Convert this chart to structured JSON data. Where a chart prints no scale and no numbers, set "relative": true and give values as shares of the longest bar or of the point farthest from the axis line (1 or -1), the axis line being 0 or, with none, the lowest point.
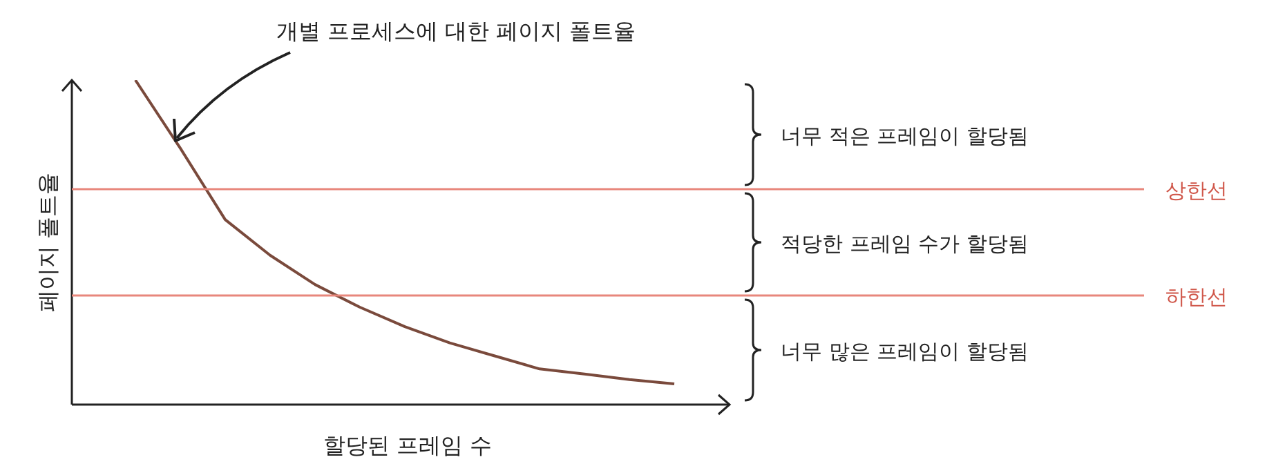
{
  "chart_data": {
    "type": "line",
    "relative": true,
    "xlabel": "할당된 프레임 수",
    "ylabel": "페이지 폴트율",
    "categories": [
      null,
      null,
      null,
      null,
      null,
      null,
      null,
      null,
      null,
      null,
      null,
      null,
      null
    ],
    "series": [
      {
        "color": "#7a4a3c",
        "values": [
          1,
          0.79,
          0.57,
          0.46,
          0.37,
          0.3,
          0.24,
          0.19,
          0.15,
          0.11,
          0.094,
          0.077,
          0.064
        ]
      }
    ],
    "ref_lines": [
      {
        "axis": "y",
        "value": 0.664,
        "label": "상한선",
        "color": "#e8877c"
      },
      {
        "axis": "y",
        "value": 0.336,
        "label": "하한선",
        "color": "#e8877c"
      }
    ],
    "annotations": [
      "개별 프로세스에 대한 페이지 폴트율",
      "너무 적은 프레임이 할당됨",
      "적당한 프레임 수가 할당됨",
      "너무 많은 프레임이 할당됨"
    ],
    "marker": "none",
    "line_style": "solid"
  }
}
